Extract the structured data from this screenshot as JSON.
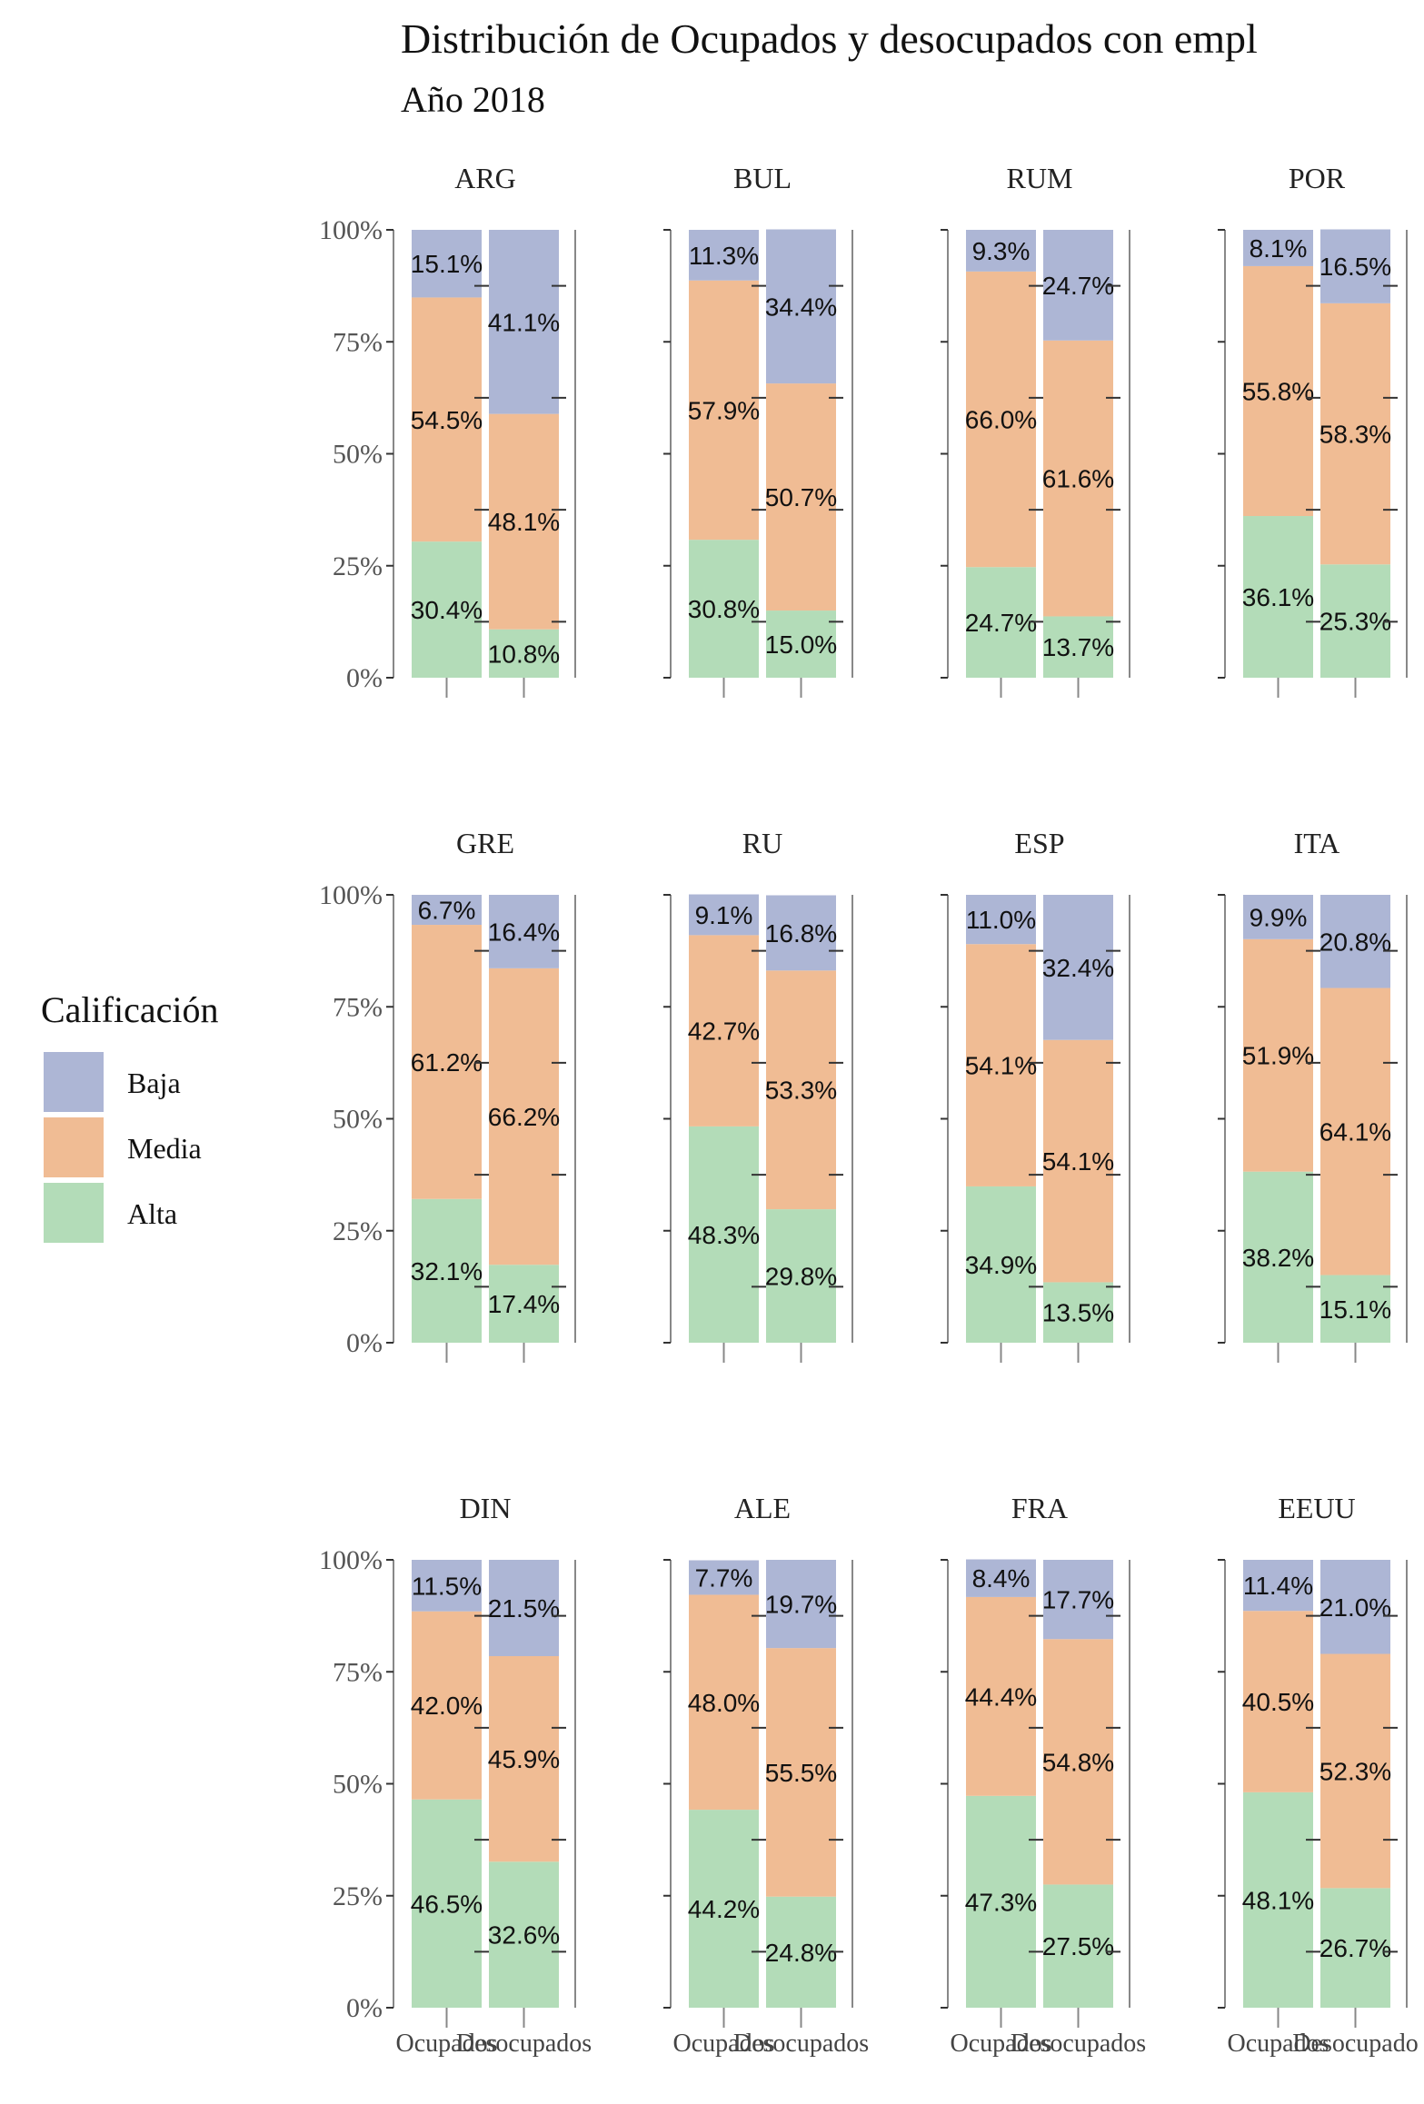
{
  "chart_data": {
    "type": "bar",
    "stacked": true,
    "title": "Distribución de Ocupados y desocupados con empl",
    "subtitle": "Año 2018",
    "categories": [
      "Ocupados",
      "Desocupados"
    ],
    "ylim": [
      0,
      100
    ],
    "y_ticks": [
      "0%",
      "25%",
      "50%",
      "75%",
      "100%"
    ],
    "x_tick_labels": [
      "Ocupados",
      "Desocupados",
      "Ocupados",
      "Desocupados",
      "Ocupados",
      "Desocupados",
      "Ocupados",
      "Desocupado"
    ],
    "legend": {
      "title": "Calificación",
      "position": "left",
      "items": [
        {
          "label": "Baja",
          "color": "#adb6d5"
        },
        {
          "label": "Media",
          "color": "#f0bc94"
        },
        {
          "label": "Alta",
          "color": "#b3dcb8"
        }
      ]
    },
    "series_order": [
      "Alta",
      "Media",
      "Baja"
    ],
    "colors": {
      "Baja": "#adb6d5",
      "Media": "#f0bc94",
      "Alta": "#b3dcb8"
    },
    "facets": [
      {
        "name": "ARG",
        "bars": [
          {
            "category": "Ocupados",
            "Alta": 30.4,
            "Media": 54.5,
            "Baja": 15.1,
            "labels": {
              "Alta": "30.4%",
              "Media": "54.5%",
              "Baja": "15.1%"
            }
          },
          {
            "category": "Desocupados",
            "Alta": 10.8,
            "Media": 48.1,
            "Baja": 41.1,
            "labels": {
              "Alta": "10.8%",
              "Media": "48.1%",
              "Baja": "41.1%"
            }
          }
        ]
      },
      {
        "name": "BUL",
        "bars": [
          {
            "category": "Ocupados",
            "Alta": 30.8,
            "Media": 57.9,
            "Baja": 11.3,
            "labels": {
              "Alta": "30.8%",
              "Media": "57.9%",
              "Baja": "11.3%"
            }
          },
          {
            "category": "Desocupados",
            "Alta": 15.0,
            "Media": 50.7,
            "Baja": 34.4,
            "labels": {
              "Alta": "15.0%",
              "Media": "50.7%",
              "Baja": "34.4%"
            }
          }
        ]
      },
      {
        "name": "RUM",
        "bars": [
          {
            "category": "Ocupados",
            "Alta": 24.7,
            "Media": 66.0,
            "Baja": 9.3,
            "labels": {
              "Alta": "24.7%",
              "Media": "66.0%",
              "Baja": "9.3%"
            }
          },
          {
            "category": "Desocupados",
            "Alta": 13.7,
            "Media": 61.6,
            "Baja": 24.7,
            "labels": {
              "Alta": "13.7%",
              "Media": "61.6%",
              "Baja": "24.7%"
            }
          }
        ]
      },
      {
        "name": "POR",
        "bars": [
          {
            "category": "Ocupados",
            "Alta": 36.1,
            "Media": 55.8,
            "Baja": 8.1,
            "labels": {
              "Alta": "36.1%",
              "Media": "55.8%",
              "Baja": "8.1%"
            }
          },
          {
            "category": "Desocupados",
            "Alta": 25.3,
            "Media": 58.3,
            "Baja": 16.5,
            "labels": {
              "Alta": "25.3%",
              "Media": "58.3%",
              "Baja": "16.5%"
            }
          }
        ]
      },
      {
        "name": "GRE",
        "bars": [
          {
            "category": "Ocupados",
            "Alta": 32.1,
            "Media": 61.2,
            "Baja": 6.7,
            "labels": {
              "Alta": "32.1%",
              "Media": "61.2%",
              "Baja": "6.7%"
            }
          },
          {
            "category": "Desocupados",
            "Alta": 17.4,
            "Media": 66.2,
            "Baja": 16.4,
            "labels": {
              "Alta": "17.4%",
              "Media": "66.2%",
              "Baja": "16.4%"
            }
          }
        ]
      },
      {
        "name": "RU",
        "bars": [
          {
            "category": "Ocupados",
            "Alta": 48.3,
            "Media": 42.7,
            "Baja": 9.1,
            "labels": {
              "Alta": "48.3%",
              "Media": "42.7%",
              "Baja": "9.1%"
            }
          },
          {
            "category": "Desocupados",
            "Alta": 29.8,
            "Media": 53.3,
            "Baja": 16.8,
            "labels": {
              "Alta": "29.8%",
              "Media": "53.3%",
              "Baja": "16.8%"
            }
          }
        ]
      },
      {
        "name": "ESP",
        "bars": [
          {
            "category": "Ocupados",
            "Alta": 34.9,
            "Media": 54.1,
            "Baja": 11.0,
            "labels": {
              "Alta": "34.9%",
              "Media": "54.1%",
              "Baja": "11.0%"
            }
          },
          {
            "category": "Desocupados",
            "Alta": 13.5,
            "Media": 54.1,
            "Baja": 32.4,
            "labels": {
              "Alta": "13.5%",
              "Media": "54.1%",
              "Baja": "32.4%"
            }
          }
        ]
      },
      {
        "name": "ITA",
        "bars": [
          {
            "category": "Ocupados",
            "Alta": 38.2,
            "Media": 51.9,
            "Baja": 9.9,
            "labels": {
              "Alta": "38.2%",
              "Media": "51.9%",
              "Baja": "9.9%"
            }
          },
          {
            "category": "Desocupados",
            "Alta": 15.1,
            "Media": 64.1,
            "Baja": 20.8,
            "labels": {
              "Alta": "15.1%",
              "Media": "64.1%",
              "Baja": "20.8%"
            }
          }
        ]
      },
      {
        "name": "DIN",
        "bars": [
          {
            "category": "Ocupados",
            "Alta": 46.5,
            "Media": 42.0,
            "Baja": 11.5,
            "labels": {
              "Alta": "46.5%",
              "Media": "42.0%",
              "Baja": "11.5%"
            }
          },
          {
            "category": "Desocupados",
            "Alta": 32.6,
            "Media": 45.9,
            "Baja": 21.5,
            "labels": {
              "Alta": "32.6%",
              "Media": "45.9%",
              "Baja": "21.5%"
            }
          }
        ]
      },
      {
        "name": "ALE",
        "bars": [
          {
            "category": "Ocupados",
            "Alta": 44.2,
            "Media": 48.0,
            "Baja": 7.7,
            "labels": {
              "Alta": "44.2%",
              "Media": "48.0%",
              "Baja": "7.7%"
            }
          },
          {
            "category": "Desocupados",
            "Alta": 24.8,
            "Media": 55.5,
            "Baja": 19.7,
            "labels": {
              "Alta": "24.8%",
              "Media": "55.5%",
              "Baja": "19.7%"
            }
          }
        ]
      },
      {
        "name": "FRA",
        "bars": [
          {
            "category": "Ocupados",
            "Alta": 47.3,
            "Media": 44.4,
            "Baja": 8.4,
            "labels": {
              "Alta": "47.3%",
              "Media": "44.4%",
              "Baja": "8.4%"
            }
          },
          {
            "category": "Desocupados",
            "Alta": 27.5,
            "Media": 54.8,
            "Baja": 17.7,
            "labels": {
              "Alta": "27.5%",
              "Media": "54.8%",
              "Baja": "17.7%"
            }
          }
        ]
      },
      {
        "name": "EEUU",
        "bars": [
          {
            "category": "Ocupados",
            "Alta": 48.1,
            "Media": 40.5,
            "Baja": 11.4,
            "labels": {
              "Alta": "48.1%",
              "Media": "40.5%",
              "Baja": "11.4%"
            }
          },
          {
            "category": "Desocupados",
            "Alta": 26.7,
            "Media": 52.3,
            "Baja": 21.0,
            "labels": {
              "Alta": "26.7%",
              "Media": "52.3%",
              "Baja": "21.0%"
            }
          }
        ]
      }
    ]
  }
}
